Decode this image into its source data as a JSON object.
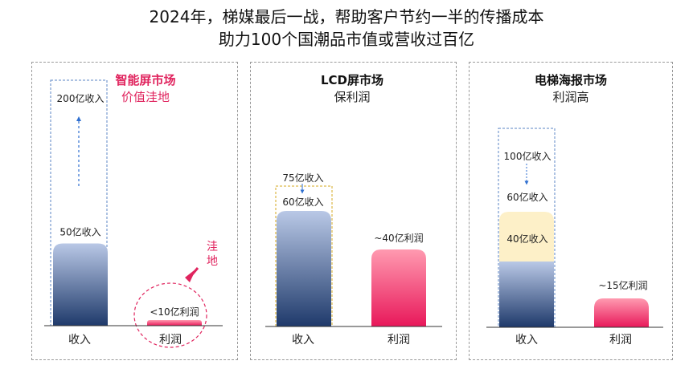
{
  "header": {
    "title_line1": "2024年，梯媒最后一战，帮助客户节约一半的传播成本",
    "title_line2": "助力100个国潮品市值或营收过百亿"
  },
  "colors": {
    "accent": "#e0245e",
    "revenue_top": "#b9c8e6",
    "revenue_bottom": "#1f3a6b",
    "profit_top": "#ff9ab0",
    "profit_bottom": "#e8185a",
    "highlight_box": "#fdf0c8",
    "arrow": "#2f6fd0"
  },
  "chart_data": [
    {
      "type": "bar",
      "title": "智能屏市场",
      "subtitle": "价值洼地",
      "categories": [
        "收入",
        "利润"
      ],
      "values": [
        50,
        10
      ],
      "value_labels": [
        "50亿收入",
        "<10亿利润"
      ],
      "projection": {
        "value": 200,
        "label": "200亿收入"
      },
      "annotation": "洼地"
    },
    {
      "type": "bar",
      "title": "LCD屏市场",
      "subtitle": "保利润",
      "categories": [
        "收入",
        "利润"
      ],
      "values": [
        60,
        40
      ],
      "value_labels": [
        "60亿收入",
        "~40亿利润"
      ],
      "projection": {
        "value": 75,
        "label": "75亿收入"
      }
    },
    {
      "type": "bar",
      "title": "电梯海报市场",
      "subtitle": "利润高",
      "categories": [
        "收入",
        "利润"
      ],
      "values": [
        60,
        15
      ],
      "value_labels": [
        "60亿收入",
        "~15亿利润"
      ],
      "segment": {
        "value": 40,
        "label": "40亿收入"
      },
      "projection": {
        "value": 100,
        "label": "100亿收入"
      }
    }
  ]
}
